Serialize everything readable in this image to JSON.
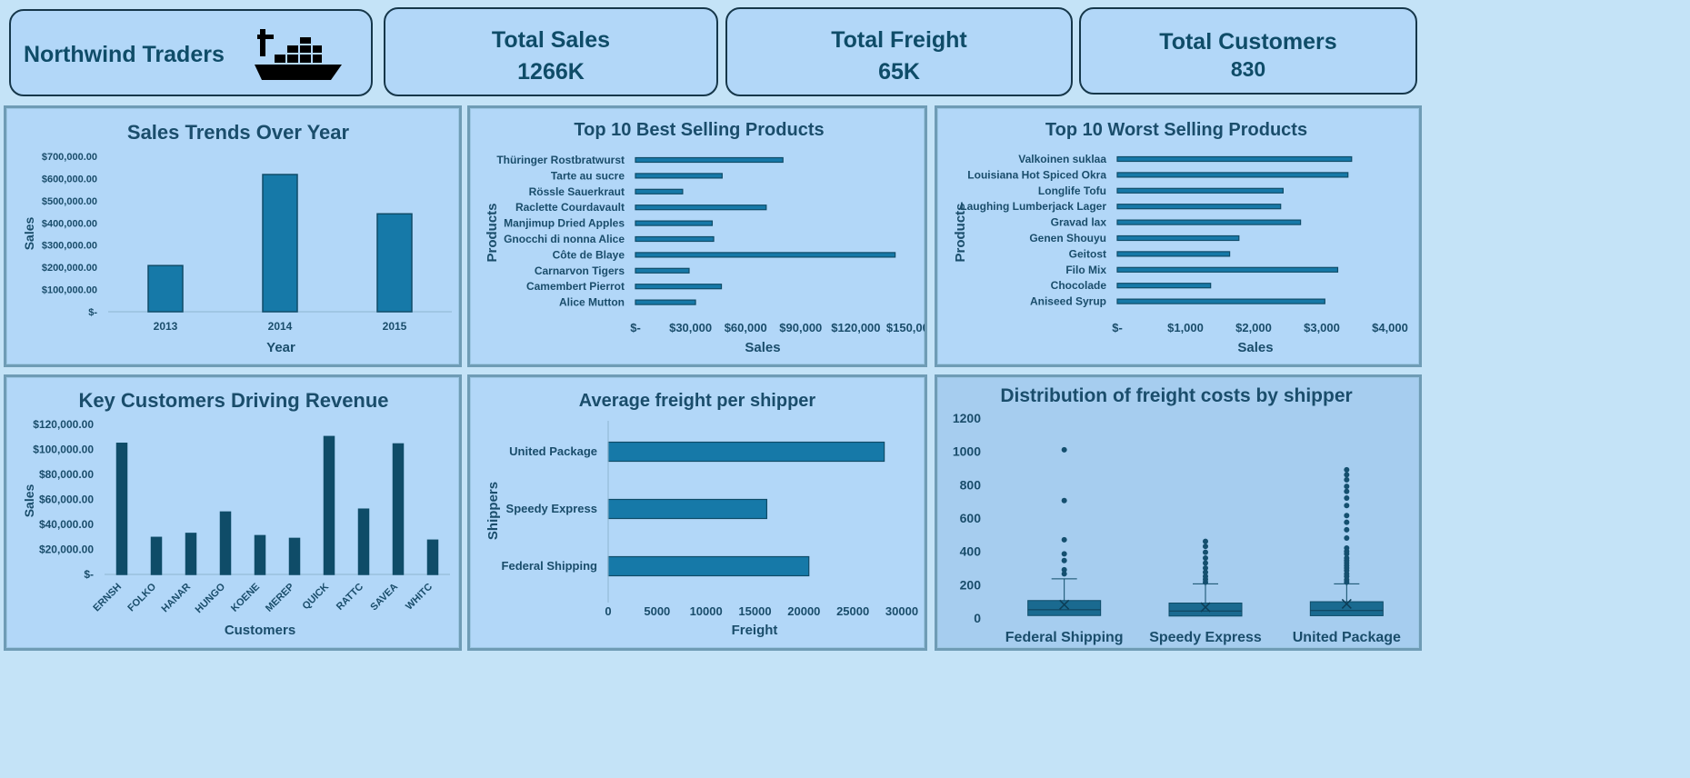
{
  "brand": {
    "title": "Northwind Traders",
    "icon": "cargo-ship-icon"
  },
  "kpis": [
    {
      "title": "Total Sales",
      "value": "1266K"
    },
    {
      "title": "Total Freight",
      "value": "65K"
    },
    {
      "title": "Total Customers",
      "value": "830"
    }
  ],
  "colors": {
    "bar": "#1679a8",
    "bar_dark": "#0f4c68",
    "panel": "#b2d7f8",
    "text": "#1a4d6b",
    "bg": "#c4e3f7"
  },
  "chart_data": [
    {
      "id": "sales-trend",
      "type": "bar",
      "title": "Sales Trends Over Year",
      "xlabel": "Year",
      "ylabel": "Sales",
      "categories": [
        "2013",
        "2014",
        "2015"
      ],
      "values": [
        208000,
        618000,
        441000
      ],
      "ylim": [
        0,
        700000
      ],
      "yticks": [
        0,
        100000,
        200000,
        300000,
        400000,
        500000,
        600000,
        700000
      ],
      "ytick_labels": [
        "$-",
        "$100,000.00",
        "$200,000.00",
        "$300,000.00",
        "$400,000.00",
        "$500,000.00",
        "$600,000.00",
        "$700,000.00"
      ]
    },
    {
      "id": "best-products",
      "type": "bar",
      "orientation": "horizontal",
      "title": "Top 10 Best Selling Products",
      "xlabel": "Sales",
      "ylabel": "Products",
      "categories": [
        "Thüringer Rostbratwurst",
        "Tarte au sucre",
        "Rössle Sauerkraut",
        "Raclette Courdavault",
        "Manjimup Dried Apples",
        "Gnocchi di nonna Alice",
        "Côte de Blaye",
        "Carnarvon Tigers",
        "Camembert Pierrot",
        "Alice Mutton"
      ],
      "values": [
        80300,
        47200,
        25700,
        71200,
        41800,
        42600,
        141400,
        29200,
        46800,
        32700
      ],
      "xlim": [
        0,
        150000
      ],
      "xticks": [
        0,
        30000,
        60000,
        90000,
        120000,
        150000
      ],
      "xtick_labels": [
        "$-",
        "$30,000",
        "$60,000",
        "$90,000",
        "$120,000",
        "$150,000"
      ]
    },
    {
      "id": "worst-products",
      "type": "bar",
      "orientation": "horizontal",
      "title": "Top 10 Worst Selling Products",
      "xlabel": "Sales",
      "ylabel": "Products",
      "categories": [
        "Valkoinen suklaa",
        "Louisiana Hot Spiced Okra",
        "Longlife Tofu",
        "Laughing Lumberjack Lager",
        "Gravad lax",
        "Genen Shouyu",
        "Geitost",
        "Filo Mix",
        "Chocolade",
        "Aniseed Syrup"
      ],
      "values": [
        3437,
        3383,
        2432,
        2396,
        2688,
        1784,
        1648,
        3233,
        1369,
        3044
      ],
      "xlim": [
        0,
        4000
      ],
      "xticks": [
        0,
        1000,
        2000,
        3000,
        4000
      ],
      "xtick_labels": [
        "$-",
        "$1,000",
        "$2,000",
        "$3,000",
        "$4,000"
      ]
    },
    {
      "id": "key-customers",
      "type": "bar",
      "title": "Key Customers Driving Revenue",
      "xlabel": "Customers",
      "ylabel": "Sales",
      "categories": [
        "ERNSH",
        "FOLKO",
        "HANAR",
        "HUNGO",
        "KOENE",
        "MEREP",
        "QUICK",
        "RATTC",
        "SAVEA",
        "WHITC"
      ],
      "values": [
        104900,
        29600,
        32800,
        49900,
        31000,
        28800,
        110300,
        52200,
        104400,
        27400
      ],
      "ylim": [
        0,
        120000
      ],
      "yticks": [
        0,
        20000,
        40000,
        60000,
        80000,
        100000,
        120000
      ],
      "ytick_labels": [
        "$-",
        "$20,000.00",
        "$40,000.00",
        "$60,000.00",
        "$80,000.00",
        "$100,000.00",
        "$120,000.00"
      ]
    },
    {
      "id": "avg-freight",
      "type": "bar",
      "orientation": "horizontal",
      "title": "Average freight per shipper",
      "xlabel": "Freight",
      "ylabel": "Shippers",
      "categories": [
        "United Package",
        "Speedy Express",
        "Federal Shipping"
      ],
      "values": [
        28200,
        16200,
        20500
      ],
      "xlim": [
        0,
        30000
      ],
      "xticks": [
        0,
        5000,
        10000,
        15000,
        20000,
        25000,
        30000
      ],
      "xtick_labels": [
        "0",
        "5000",
        "10000",
        "15000",
        "20000",
        "25000",
        "30000"
      ]
    },
    {
      "id": "freight-dist",
      "type": "box",
      "title": "Distribution of freight costs by shipper",
      "categories": [
        "Federal Shipping",
        "Speedy Express",
        "United Package"
      ],
      "ylim": [
        0,
        1200
      ],
      "yticks": [
        0,
        200,
        400,
        600,
        800,
        1000,
        1200
      ],
      "ytick_labels": [
        "0",
        "200",
        "400",
        "600",
        "800",
        "1000",
        "1200"
      ],
      "boxes": [
        {
          "q1": 15,
          "median": 50,
          "q3": 105,
          "mean": 80,
          "whisker_low": 0,
          "whisker_high": 235,
          "outliers": [
            265,
            290,
            345,
            385,
            470,
            705,
            1010
          ]
        },
        {
          "q1": 12,
          "median": 42,
          "q3": 90,
          "mean": 65,
          "whisker_low": 0,
          "whisker_high": 205,
          "outliers": [
            215,
            232,
            250,
            275,
            300,
            330,
            360,
            395,
            430,
            460
          ]
        },
        {
          "q1": 14,
          "median": 45,
          "q3": 98,
          "mean": 85,
          "whisker_low": 0,
          "whisker_high": 205,
          "outliers": [
            215,
            230,
            250,
            265,
            285,
            300,
            315,
            330,
            345,
            360,
            385,
            400,
            420,
            480,
            530,
            575,
            615,
            675,
            720,
            760,
            790,
            830,
            860,
            890
          ]
        }
      ]
    }
  ]
}
